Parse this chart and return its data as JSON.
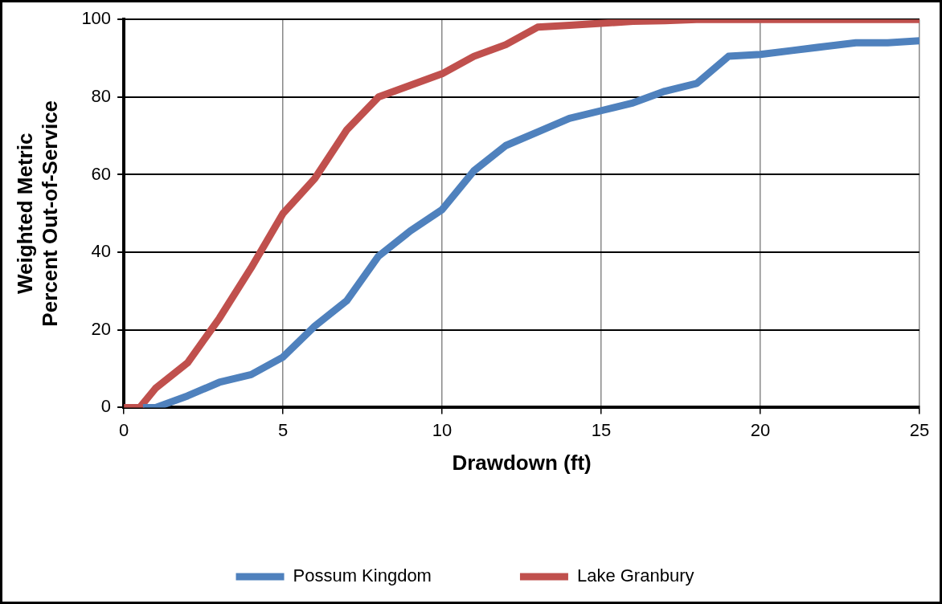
{
  "chart_data": {
    "type": "line",
    "xlabel": "Drawdown (ft)",
    "ylabel": "Weighted Metric\nPercent Out-of-Service",
    "xlim": [
      0,
      25
    ],
    "xticks": [
      0,
      5,
      10,
      15,
      20,
      25
    ],
    "ylim": [
      0,
      100
    ],
    "yticks": [
      0,
      20,
      40,
      60,
      80,
      100
    ],
    "grid": true,
    "legend": "bottom",
    "marker": "none",
    "line_style": "solid",
    "series": [
      {
        "name": "Possum Kingdom",
        "color": "#4f81bd",
        "x": [
          0.6,
          1,
          2,
          3,
          4,
          5,
          6,
          7,
          8,
          9,
          10,
          11,
          12,
          13,
          14,
          15,
          16,
          17,
          18,
          19,
          20,
          21,
          22,
          23,
          24,
          25
        ],
        "values": [
          0,
          0,
          3,
          6.5,
          8.5,
          13,
          21,
          27.5,
          39,
          45.5,
          51,
          61,
          67.5,
          71,
          74.5,
          76.5,
          78.5,
          81.5,
          83.5,
          90.5,
          91,
          92,
          93,
          94,
          94,
          94.5
        ]
      },
      {
        "name": "Lake Granbury",
        "color": "#c0504d",
        "x": [
          0,
          0.5,
          1,
          2,
          3,
          4,
          5,
          6,
          7,
          8,
          9,
          10,
          11,
          12,
          13,
          14,
          15,
          16,
          17,
          18,
          19,
          20,
          21,
          22,
          23,
          24,
          25
        ],
        "values": [
          0,
          0,
          5,
          11.5,
          23,
          36,
          50,
          59,
          71.5,
          80,
          83,
          86,
          90.5,
          93.5,
          98,
          98.5,
          99,
          99.5,
          99.7,
          100,
          100,
          100,
          100,
          100,
          100,
          100,
          100
        ]
      }
    ]
  }
}
